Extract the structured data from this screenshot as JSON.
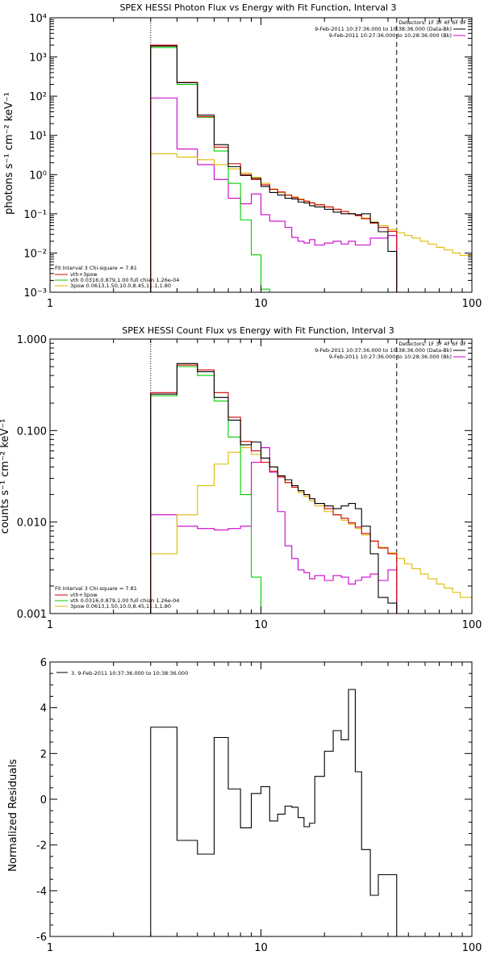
{
  "colors": {
    "data": "#000000",
    "total": "#d40000",
    "vth": "#00cc00",
    "bkg": "#cc00cc",
    "bpow": "#ddbb00"
  },
  "chart_data": [
    {
      "type": "line",
      "title": "SPEX HESSI Photon Flux vs Energy with Fit Function, Interval 3",
      "xlabel": "",
      "ylabel": "photons s⁻¹ cm⁻² keV⁻¹",
      "xscale": "log",
      "yscale": "log",
      "xlim": [
        1,
        100
      ],
      "ylim": [
        0.001,
        10000
      ],
      "xticks": [
        1,
        10,
        100
      ],
      "xtick_labels": [
        "1",
        "10",
        "100"
      ],
      "yticks": [
        0.001,
        0.01,
        0.1,
        1,
        10,
        100,
        1000,
        10000
      ],
      "ytick_labels": [
        "10⁻³",
        "10⁻²",
        "10⁻¹",
        "10⁰",
        "10¹",
        "10²",
        "10³",
        "10⁴"
      ],
      "vlines": [
        {
          "x": 3.0,
          "style": "dotted"
        },
        {
          "x": 44.0,
          "style": "dashed"
        }
      ],
      "legend_top_right": [
        "Detectors: 1F 3F 4F 6F 9F",
        "9-Feb-2011 10:37:36.000 to 10:38:36.000 (Data-Bk)",
        "9-Feb-2011 10:27:36.000 to 10:28:36.000 (Bk)"
      ],
      "legend_bottom_left": {
        "header": "Fit Interval 3   Chi-square = 7.81",
        "entries": [
          "vth+3pow",
          "vth 0.0316,0.879,1.00   full chian 1.26e-04",
          "3pow 0.0613,1.50,10.0,8.45,11.1,1.80"
        ]
      },
      "edges": [
        3.0,
        4.0,
        5.0,
        6.0,
        7.0,
        8.0,
        9.0,
        10.0,
        11.0,
        12.0,
        13.0,
        14.0,
        15.0,
        16.0,
        17.0,
        18.0,
        20.0,
        22.0,
        24.0,
        26.0,
        28.0,
        30.0,
        33.0,
        36.0,
        40.0,
        44.0
      ],
      "series": [
        {
          "name": "Data-Bk",
          "color": "#000000",
          "values": [
            1900,
            220,
            33,
            5.8,
            1.6,
            0.95,
            0.8,
            0.5,
            0.35,
            0.3,
            0.25,
            0.24,
            0.2,
            0.19,
            0.16,
            0.15,
            0.13,
            0.11,
            0.1,
            0.1,
            0.095,
            0.1,
            0.06,
            0.035,
            0.011
          ]
        },
        {
          "name": "Bk",
          "color": "#cc00cc",
          "values": [
            90,
            4.5,
            1.8,
            0.75,
            0.25,
            0.18,
            0.32,
            0.095,
            0.065,
            0.065,
            0.045,
            0.025,
            0.02,
            0.018,
            0.022,
            0.016,
            0.018,
            0.02,
            0.017,
            0.02,
            0.016,
            0.016,
            0.024,
            0.024,
            0.028
          ]
        },
        {
          "name": "vth+3pow",
          "color": "#d40000",
          "values": [
            2000,
            225,
            30,
            5.0,
            1.9,
            1.0,
            0.75,
            0.55,
            0.42,
            0.36,
            0.3,
            0.26,
            0.23,
            0.21,
            0.19,
            0.17,
            0.15,
            0.13,
            0.115,
            0.1,
            0.09,
            0.075,
            0.058,
            0.045,
            0.036
          ]
        },
        {
          "name": "vth",
          "color": "#00cc00",
          "values": [
            1750,
            200,
            29,
            4.0,
            0.6,
            0.07,
            0.009,
            0.0012
          ]
        },
        {
          "name": "3pow",
          "color": "#ddbb00",
          "edges": [
            3.0,
            4.0,
            5.0,
            6.0,
            7.0,
            8.0,
            9.0,
            10.0,
            11.0,
            12.0,
            13.0,
            14.0,
            15.0,
            16.0,
            17.0,
            18.0,
            20.0,
            22.0,
            24.0,
            26.0,
            28.0,
            30.0,
            33.0,
            36.0,
            40.0,
            44.0,
            48.0,
            52.0,
            57.0,
            62.0,
            68.0,
            74.0,
            81.0,
            88.0,
            100.0
          ],
          "values": [
            3.4,
            2.8,
            2.4,
            1.8,
            1.4,
            1.1,
            0.85,
            0.6,
            0.43,
            0.35,
            0.3,
            0.27,
            0.24,
            0.21,
            0.19,
            0.17,
            0.15,
            0.13,
            0.115,
            0.1,
            0.09,
            0.078,
            0.062,
            0.05,
            0.04,
            0.033,
            0.028,
            0.024,
            0.02,
            0.017,
            0.014,
            0.012,
            0.01,
            0.0087
          ]
        }
      ]
    },
    {
      "type": "line",
      "title": "SPEX HESSI Count Flux vs Energy with Fit Function, Interval 3",
      "xlabel": "",
      "ylabel": "counts s⁻¹ cm⁻² keV⁻¹",
      "xscale": "log",
      "yscale": "log",
      "xlim": [
        1,
        100
      ],
      "ylim": [
        0.001,
        1.0
      ],
      "xticks": [
        1,
        10,
        100
      ],
      "xtick_labels": [
        "1",
        "10",
        "100"
      ],
      "yticks": [
        0.001,
        0.01,
        0.1,
        1.0
      ],
      "ytick_labels": [
        "0.001",
        "0.010",
        "0.100",
        "1.000"
      ],
      "vlines": [
        {
          "x": 3.0,
          "style": "dotted"
        },
        {
          "x": 44.0,
          "style": "dashed"
        }
      ],
      "legend_top_right": [
        "Detectors: 1F 3F 4F 6F 9F",
        "9-Feb-2011 10:37:36.000 to 10:38:36.000 (Data-Bk)",
        "9-Feb-2011 10:27:36.000 to 10:28:36.000 (Bk)"
      ],
      "legend_bottom_left": {
        "header": "Fit Interval 3   Chi-square = 7.81",
        "entries": [
          "vth+3pow",
          "vth 0.0316,0.879,1.00   full chian 1.26e-04",
          "3pow 0.0613,1.50,10.0,8.45,11.1,1.80"
        ]
      },
      "edges": [
        3.0,
        4.0,
        5.0,
        6.0,
        7.0,
        8.0,
        9.0,
        10.0,
        11.0,
        12.0,
        13.0,
        14.0,
        15.0,
        16.0,
        17.0,
        18.0,
        20.0,
        22.0,
        24.0,
        26.0,
        28.0,
        30.0,
        33.0,
        36.0,
        40.0,
        44.0
      ],
      "series": [
        {
          "name": "Data-Bk",
          "color": "#000000",
          "values": [
            0.25,
            0.54,
            0.44,
            0.23,
            0.13,
            0.07,
            0.075,
            0.05,
            0.04,
            0.032,
            0.029,
            0.025,
            0.022,
            0.02,
            0.018,
            0.016,
            0.015,
            0.014,
            0.015,
            0.016,
            0.014,
            0.009,
            0.0045,
            0.0015,
            0.0013
          ]
        },
        {
          "name": "Bk",
          "color": "#cc00cc",
          "values": [
            0.012,
            0.009,
            0.0085,
            0.0082,
            0.0085,
            0.009,
            0.045,
            0.065,
            0.035,
            0.013,
            0.0055,
            0.004,
            0.003,
            0.0028,
            0.0024,
            0.0026,
            0.0023,
            0.0026,
            0.0025,
            0.0021,
            0.0023,
            0.0025,
            0.0027,
            0.0023,
            0.003
          ]
        },
        {
          "name": "vth+3pow",
          "color": "#d40000",
          "values": [
            0.26,
            0.52,
            0.46,
            0.26,
            0.14,
            0.076,
            0.06,
            0.045,
            0.036,
            0.031,
            0.027,
            0.024,
            0.022,
            0.02,
            0.018,
            0.016,
            0.014,
            0.012,
            0.011,
            0.0098,
            0.0088,
            0.0075,
            0.0062,
            0.0052,
            0.0045
          ]
        },
        {
          "name": "vth",
          "color": "#00cc00",
          "values": [
            0.24,
            0.5,
            0.4,
            0.21,
            0.085,
            0.02,
            0.0025
          ]
        },
        {
          "name": "3pow",
          "color": "#ddbb00",
          "edges": [
            3.0,
            4.0,
            5.0,
            6.0,
            7.0,
            8.0,
            9.0,
            10.0,
            11.0,
            12.0,
            13.0,
            14.0,
            15.0,
            16.0,
            17.0,
            18.0,
            20.0,
            22.0,
            24.0,
            26.0,
            28.0,
            30.0,
            33.0,
            36.0,
            40.0,
            44.0,
            48.0,
            52.0,
            57.0,
            62.0,
            68.0,
            74.0,
            81.0,
            88.0,
            100.0
          ],
          "values": [
            0.0045,
            0.012,
            0.025,
            0.043,
            0.058,
            0.065,
            0.055,
            0.05,
            0.04,
            0.032,
            0.027,
            0.024,
            0.021,
            0.019,
            0.017,
            0.015,
            0.013,
            0.012,
            0.0105,
            0.0095,
            0.0085,
            0.0072,
            0.0062,
            0.0053,
            0.0046,
            0.004,
            0.0035,
            0.0031,
            0.0027,
            0.0024,
            0.0021,
            0.0019,
            0.0017,
            0.0015
          ]
        }
      ]
    },
    {
      "type": "line",
      "title": "",
      "xlabel": "",
      "ylabel": "Normalized Residuals",
      "xscale": "log",
      "yscale": "linear",
      "xlim": [
        1,
        100
      ],
      "ylim": [
        -6,
        6
      ],
      "xticks": [
        1,
        10,
        100
      ],
      "xtick_labels": [
        "1",
        "10",
        "100"
      ],
      "yticks": [
        -6,
        -4,
        -2,
        0,
        2,
        4,
        6
      ],
      "ytick_labels": [
        "-6",
        "-4",
        "-2",
        "0",
        "2",
        "4",
        "6"
      ],
      "legend_top_left": "3.  9-Feb-2011 10:37:36.000 to 10:38:36.000",
      "edges": [
        3.0,
        4.0,
        5.0,
        6.0,
        7.0,
        8.0,
        9.0,
        10.0,
        11.0,
        12.0,
        13.0,
        14.0,
        15.0,
        16.0,
        17.0,
        18.0,
        20.0,
        22.0,
        24.0,
        26.0,
        28.0,
        30.0,
        33.0,
        36.0,
        40.0,
        44.0
      ],
      "series": [
        {
          "name": "residuals",
          "color": "#000000",
          "values": [
            3.15,
            -1.8,
            -2.4,
            2.7,
            0.45,
            -1.25,
            0.25,
            0.55,
            -0.95,
            -0.65,
            -0.3,
            -0.35,
            -0.8,
            -1.2,
            -1.05,
            1.0,
            2.1,
            3.0,
            2.6,
            4.8,
            1.2,
            -2.2,
            -4.2,
            -3.3,
            -3.3
          ]
        }
      ]
    }
  ]
}
